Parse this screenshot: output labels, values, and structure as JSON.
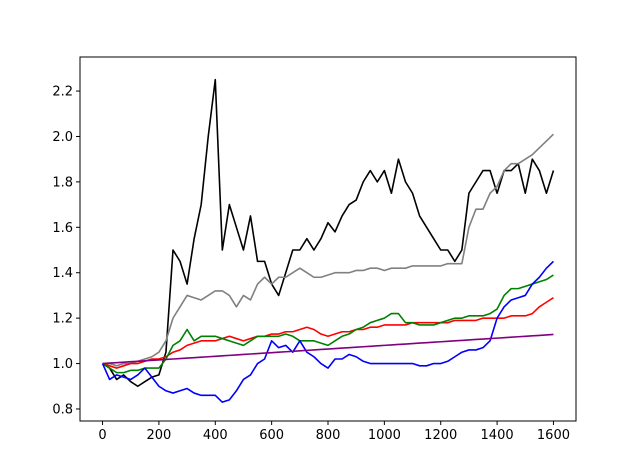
{
  "chart_data": {
    "type": "line",
    "x": [
      0,
      25,
      50,
      75,
      100,
      125,
      150,
      175,
      200,
      225,
      250,
      275,
      300,
      325,
      350,
      375,
      400,
      425,
      450,
      475,
      500,
      525,
      550,
      575,
      600,
      625,
      650,
      675,
      700,
      725,
      750,
      775,
      800,
      825,
      850,
      875,
      900,
      925,
      950,
      975,
      1000,
      1025,
      1050,
      1075,
      1100,
      1125,
      1150,
      1175,
      1200,
      1225,
      1250,
      1275,
      1300,
      1325,
      1350,
      1375,
      1400,
      1425,
      1450,
      1475,
      1500,
      1525,
      1550,
      1575,
      1600
    ],
    "series": [
      {
        "color": "#000000",
        "values": [
          1.0,
          0.98,
          0.93,
          0.95,
          0.92,
          0.9,
          0.92,
          0.94,
          0.95,
          1.05,
          1.5,
          1.45,
          1.35,
          1.55,
          1.7,
          2.0,
          2.25,
          1.5,
          1.7,
          1.6,
          1.5,
          1.65,
          1.45,
          1.45,
          1.35,
          1.3,
          1.4,
          1.5,
          1.5,
          1.55,
          1.5,
          1.55,
          1.62,
          1.58,
          1.65,
          1.7,
          1.72,
          1.8,
          1.85,
          1.8,
          1.85,
          1.75,
          1.9,
          1.8,
          1.75,
          1.65,
          1.6,
          1.55,
          1.5,
          1.5,
          1.45,
          1.5,
          1.75,
          1.8,
          1.85,
          1.85,
          1.75,
          1.85,
          1.85,
          1.88,
          1.75,
          1.9,
          1.85,
          1.75,
          1.85
        ]
      },
      {
        "color": "#808080",
        "values": [
          1.0,
          1.0,
          0.99,
          1.0,
          1.0,
          1.01,
          1.02,
          1.03,
          1.05,
          1.1,
          1.2,
          1.25,
          1.3,
          1.29,
          1.28,
          1.3,
          1.32,
          1.32,
          1.3,
          1.25,
          1.3,
          1.28,
          1.35,
          1.38,
          1.35,
          1.38,
          1.38,
          1.4,
          1.42,
          1.4,
          1.38,
          1.38,
          1.39,
          1.4,
          1.4,
          1.4,
          1.41,
          1.41,
          1.42,
          1.42,
          1.41,
          1.42,
          1.42,
          1.42,
          1.43,
          1.43,
          1.43,
          1.43,
          1.43,
          1.44,
          1.44,
          1.44,
          1.6,
          1.68,
          1.68,
          1.75,
          1.78,
          1.85,
          1.88,
          1.88,
          1.9,
          1.92,
          1.95,
          1.98,
          2.01
        ]
      },
      {
        "color": "#ff0000",
        "values": [
          1.0,
          0.99,
          0.98,
          0.99,
          1.0,
          1.0,
          1.01,
          1.02,
          1.02,
          1.03,
          1.05,
          1.06,
          1.08,
          1.09,
          1.1,
          1.1,
          1.1,
          1.11,
          1.12,
          1.11,
          1.1,
          1.11,
          1.12,
          1.12,
          1.13,
          1.13,
          1.14,
          1.14,
          1.15,
          1.16,
          1.15,
          1.13,
          1.12,
          1.13,
          1.14,
          1.14,
          1.15,
          1.15,
          1.16,
          1.16,
          1.17,
          1.17,
          1.17,
          1.17,
          1.18,
          1.18,
          1.18,
          1.18,
          1.18,
          1.18,
          1.19,
          1.19,
          1.19,
          1.19,
          1.2,
          1.2,
          1.2,
          1.2,
          1.21,
          1.21,
          1.21,
          1.22,
          1.25,
          1.27,
          1.29
        ]
      },
      {
        "color": "#008000",
        "values": [
          1.0,
          0.98,
          0.96,
          0.96,
          0.97,
          0.97,
          0.98,
          0.98,
          0.98,
          1.02,
          1.08,
          1.1,
          1.15,
          1.1,
          1.12,
          1.12,
          1.12,
          1.11,
          1.1,
          1.09,
          1.08,
          1.1,
          1.12,
          1.12,
          1.12,
          1.12,
          1.13,
          1.12,
          1.1,
          1.1,
          1.1,
          1.09,
          1.08,
          1.1,
          1.12,
          1.13,
          1.15,
          1.16,
          1.18,
          1.19,
          1.2,
          1.22,
          1.22,
          1.18,
          1.18,
          1.17,
          1.17,
          1.17,
          1.18,
          1.19,
          1.2,
          1.2,
          1.21,
          1.21,
          1.21,
          1.22,
          1.24,
          1.3,
          1.33,
          1.33,
          1.34,
          1.35,
          1.36,
          1.37,
          1.39
        ]
      },
      {
        "color": "#0000ff",
        "values": [
          1.0,
          0.93,
          0.95,
          0.94,
          0.93,
          0.95,
          0.98,
          0.94,
          0.9,
          0.88,
          0.87,
          0.88,
          0.89,
          0.87,
          0.86,
          0.86,
          0.86,
          0.83,
          0.84,
          0.88,
          0.93,
          0.95,
          1.0,
          1.02,
          1.1,
          1.07,
          1.08,
          1.05,
          1.1,
          1.05,
          1.03,
          1.0,
          0.98,
          1.02,
          1.02,
          1.04,
          1.03,
          1.01,
          1.0,
          1.0,
          1.0,
          1.0,
          1.0,
          1.0,
          1.0,
          0.99,
          0.99,
          1.0,
          1.0,
          1.01,
          1.03,
          1.05,
          1.06,
          1.06,
          1.07,
          1.1,
          1.2,
          1.25,
          1.28,
          1.29,
          1.3,
          1.35,
          1.38,
          1.42,
          1.45
        ]
      },
      {
        "color": "#800080",
        "values": [
          1.0,
          1.002,
          1.004,
          1.006,
          1.008,
          1.01,
          1.012,
          1.014,
          1.016,
          1.018,
          1.02,
          1.022,
          1.024,
          1.026,
          1.028,
          1.03,
          1.032,
          1.034,
          1.036,
          1.038,
          1.04,
          1.042,
          1.044,
          1.046,
          1.048,
          1.05,
          1.052,
          1.054,
          1.056,
          1.058,
          1.06,
          1.062,
          1.064,
          1.066,
          1.068,
          1.07,
          1.072,
          1.074,
          1.076,
          1.078,
          1.08,
          1.082,
          1.084,
          1.086,
          1.088,
          1.09,
          1.092,
          1.094,
          1.096,
          1.098,
          1.1,
          1.102,
          1.104,
          1.106,
          1.108,
          1.11,
          1.112,
          1.114,
          1.116,
          1.118,
          1.12,
          1.122,
          1.124,
          1.126,
          1.128
        ]
      }
    ],
    "xlim": [
      -80,
      1680
    ],
    "ylim": [
      0.747,
      2.35
    ],
    "xticks": [
      0,
      200,
      400,
      600,
      800,
      1000,
      1200,
      1400,
      1600
    ],
    "yticks": [
      0.8,
      {
        "value": 1.0,
        "label": "1.0"
      },
      1.2,
      1.4,
      1.6,
      1.8,
      {
        "value": 2.0,
        "label": "2.0"
      },
      2.2
    ]
  }
}
